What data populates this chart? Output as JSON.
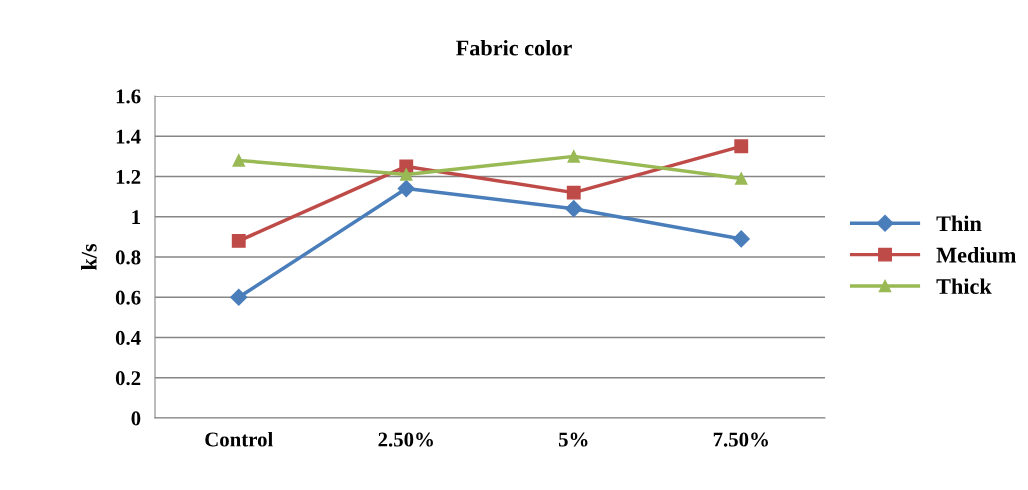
{
  "chart_data": {
    "type": "line",
    "title": "Fabric color",
    "ylabel": "k/s",
    "categories": [
      "Control",
      "2.50%",
      "5%",
      "7.50%"
    ],
    "series": [
      {
        "name": "Thin",
        "color": "#4a7ebb",
        "marker": "diamond",
        "values": [
          0.6,
          1.14,
          1.04,
          0.89
        ]
      },
      {
        "name": "Medium",
        "color": "#be4b48",
        "marker": "square",
        "values": [
          0.88,
          1.25,
          1.12,
          1.35
        ]
      },
      {
        "name": "Thick",
        "color": "#98b954",
        "marker": "triangle",
        "values": [
          1.28,
          1.21,
          1.3,
          1.19
        ]
      }
    ],
    "ylim": [
      0,
      1.6
    ],
    "yticks": [
      0,
      0.2,
      0.4,
      0.6,
      0.8,
      1,
      1.2,
      1.4,
      1.6
    ],
    "grid": "y",
    "legend": "right"
  }
}
